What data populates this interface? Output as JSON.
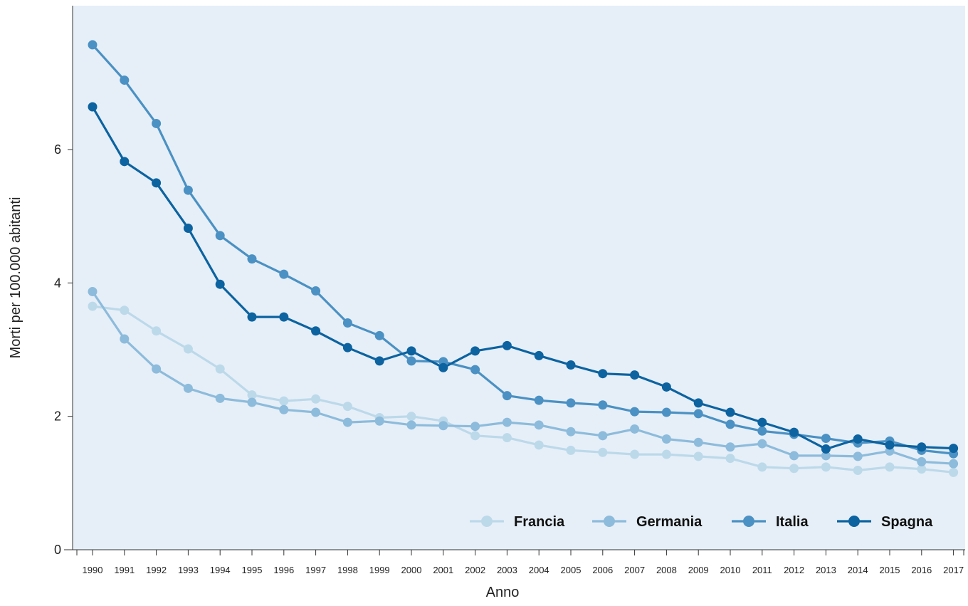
{
  "chart_data": {
    "type": "line",
    "xlabel": "Anno",
    "ylabel": "Morti per 100.000 abitanti",
    "ylim": [
      0,
      8
    ],
    "yticks": [
      0,
      2,
      4,
      6
    ],
    "x": [
      "1990",
      "1991",
      "1992",
      "1993",
      "1994",
      "1995",
      "1996",
      "1997",
      "1998",
      "1999",
      "2000",
      "2001",
      "2002",
      "2003",
      "2004",
      "2005",
      "2006",
      "2007",
      "2008",
      "2009",
      "2010",
      "2011",
      "2012",
      "2013",
      "2014",
      "2015",
      "2016",
      "2017"
    ],
    "legend_position": "bottom-right",
    "background_color": "#e6eff8",
    "series": [
      {
        "name": "Francia",
        "color": "#bcd9ea",
        "values": [
          3.65,
          3.59,
          3.28,
          3.01,
          2.71,
          2.32,
          2.23,
          2.26,
          2.15,
          1.98,
          2.0,
          1.93,
          1.71,
          1.68,
          1.57,
          1.49,
          1.46,
          1.43,
          1.43,
          1.4,
          1.37,
          1.24,
          1.22,
          1.24,
          1.19,
          1.24,
          1.21,
          1.16
        ]
      },
      {
        "name": "Germania",
        "color": "#8dbbdb",
        "values": [
          3.87,
          3.16,
          2.71,
          2.42,
          2.27,
          2.21,
          2.1,
          2.06,
          1.91,
          1.93,
          1.87,
          1.86,
          1.85,
          1.91,
          1.87,
          1.77,
          1.71,
          1.81,
          1.66,
          1.61,
          1.54,
          1.59,
          1.41,
          1.41,
          1.4,
          1.48,
          1.32,
          1.29
        ]
      },
      {
        "name": "Italia",
        "color": "#4b91c3",
        "values": [
          7.57,
          7.04,
          6.39,
          5.39,
          4.71,
          4.36,
          4.13,
          3.88,
          3.4,
          3.21,
          2.83,
          2.82,
          2.7,
          2.31,
          2.24,
          2.2,
          2.17,
          2.07,
          2.06,
          2.04,
          1.88,
          1.78,
          1.73,
          1.67,
          1.6,
          1.63,
          1.49,
          1.44
        ]
      },
      {
        "name": "Spagna",
        "color": "#0c63a0",
        "values": [
          6.64,
          5.82,
          5.5,
          4.82,
          3.98,
          3.49,
          3.49,
          3.28,
          3.03,
          2.83,
          2.98,
          2.73,
          2.98,
          3.06,
          2.91,
          2.77,
          2.64,
          2.62,
          2.44,
          2.2,
          2.06,
          1.91,
          1.76,
          1.51,
          1.66,
          1.57,
          1.54,
          1.52
        ]
      }
    ]
  }
}
